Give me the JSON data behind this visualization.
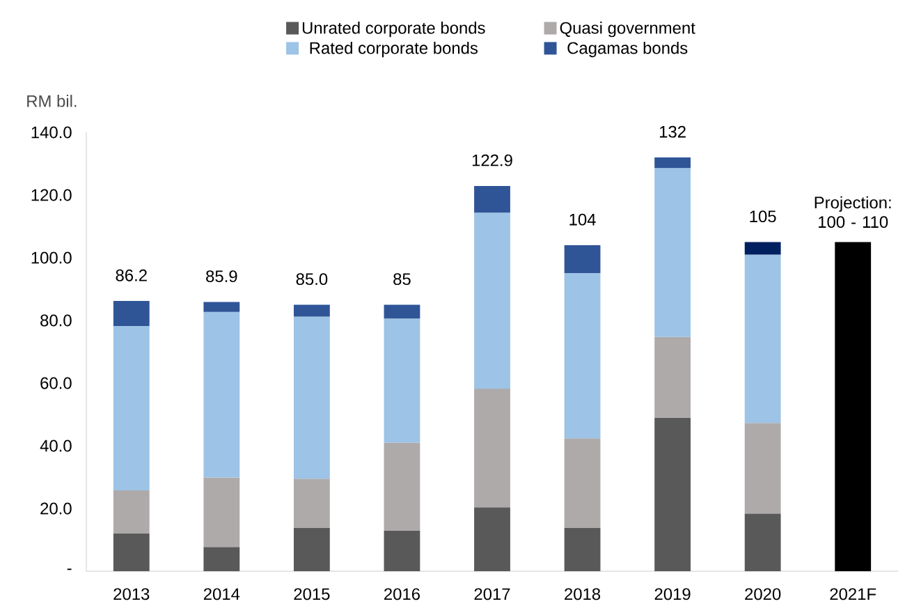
{
  "chart_data": {
    "type": "bar",
    "stacked": true,
    "ylabel": "RM bil.",
    "categories": [
      "2013",
      "2014",
      "2015",
      "2016",
      "2017",
      "2018",
      "2019",
      "2020",
      "2021F"
    ],
    "series": [
      {
        "name": "Unrated corporate bonds",
        "color": "#595959",
        "values": [
          12.1,
          7.7,
          13.9,
          13.0,
          20.4,
          13.9,
          49.0,
          18.4,
          null
        ]
      },
      {
        "name": "Quasi government",
        "color": "#aeaaaa",
        "values": [
          13.7,
          22.2,
          15.6,
          28.0,
          37.8,
          28.5,
          25.7,
          28.9,
          null
        ]
      },
      {
        "name": "Rated corporate bonds",
        "color": "#9dc3e6",
        "values": [
          52.4,
          52.8,
          51.7,
          39.6,
          56.2,
          52.7,
          53.9,
          53.7,
          null
        ]
      },
      {
        "name": "Cagamas bonds",
        "color": "#2f5597",
        "colors": [
          "#2f5597",
          "#2f5597",
          "#2f5597",
          "#2f5597",
          "#2f5597",
          "#2f5597",
          "#2f5597",
          "#002060",
          null
        ],
        "values": [
          8.0,
          3.2,
          3.8,
          4.4,
          8.5,
          8.9,
          3.4,
          4.0,
          null
        ]
      },
      {
        "color": "#000000",
        "values": [
          null,
          null,
          null,
          null,
          null,
          null,
          null,
          null,
          105
        ]
      }
    ],
    "totals": [
      "86.2",
      "85.9",
      "85.0",
      "85",
      "122.9",
      "104",
      "132",
      "105",
      null
    ],
    "annotations": [
      {
        "text": "Projection: 100 - 110",
        "x": "2021F",
        "y": 105
      }
    ],
    "ylim": [
      0,
      140
    ],
    "yticks": [
      {
        "value": 0,
        "label": "-"
      },
      {
        "value": 20,
        "label": "20.0"
      },
      {
        "value": 40,
        "label": "40.0"
      },
      {
        "value": 60,
        "label": "60.0"
      },
      {
        "value": 80,
        "label": "80.0"
      },
      {
        "value": 100,
        "label": "100.0"
      },
      {
        "value": 120,
        "label": "120.0"
      },
      {
        "value": 140,
        "label": "140.0"
      }
    ],
    "grid": false,
    "legend": "top"
  }
}
